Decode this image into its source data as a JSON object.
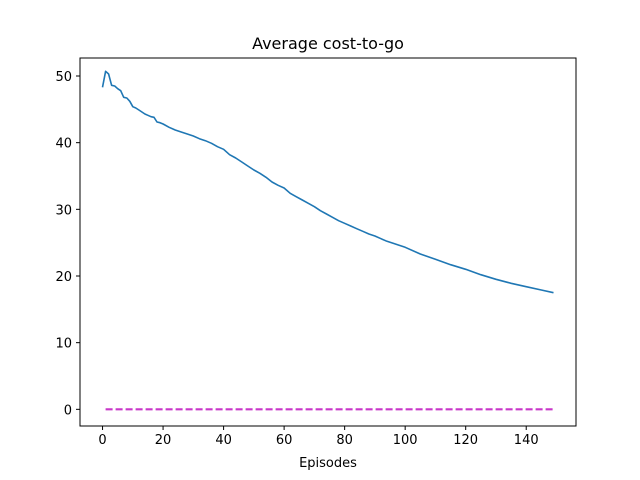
{
  "chart_data": {
    "type": "line",
    "title": "Average cost-to-go",
    "xlabel": "Episodes",
    "ylabel": "",
    "xlim": [
      -7.45,
      156.45
    ],
    "ylim": [
      -2.5,
      52.7
    ],
    "xticks": [
      0,
      20,
      40,
      60,
      80,
      100,
      120,
      140
    ],
    "yticks": [
      0,
      10,
      20,
      30,
      40,
      50
    ],
    "grid": false,
    "legend": "none",
    "series": [
      {
        "color": "#1f77b4",
        "style": "solid",
        "x": [
          0,
          1,
          2,
          3,
          4,
          5,
          6,
          7,
          8,
          9,
          10,
          11,
          12,
          13,
          14,
          15,
          16,
          17,
          18,
          19,
          20,
          22,
          24,
          26,
          28,
          30,
          32,
          34,
          36,
          38,
          40,
          42,
          44,
          46,
          48,
          50,
          52,
          54,
          56,
          58,
          60,
          62,
          64,
          66,
          68,
          70,
          72,
          74,
          76,
          78,
          80,
          82,
          84,
          86,
          88,
          90,
          92,
          94,
          96,
          98,
          100,
          105,
          110,
          115,
          120,
          125,
          130,
          135,
          140,
          145,
          149
        ],
        "values": [
          48.3,
          50.7,
          50.3,
          48.6,
          48.5,
          48.1,
          47.8,
          46.8,
          46.7,
          46.2,
          45.4,
          45.2,
          44.9,
          44.6,
          44.3,
          44.1,
          43.9,
          43.8,
          43.1,
          43.0,
          42.8,
          42.3,
          41.9,
          41.6,
          41.3,
          41.0,
          40.6,
          40.3,
          39.9,
          39.4,
          39.0,
          38.2,
          37.7,
          37.1,
          36.5,
          35.9,
          35.4,
          34.8,
          34.1,
          33.6,
          33.2,
          32.4,
          31.9,
          31.4,
          30.9,
          30.4,
          29.8,
          29.3,
          28.8,
          28.3,
          27.9,
          27.5,
          27.1,
          26.7,
          26.3,
          26.0,
          25.6,
          25.2,
          24.9,
          24.6,
          24.3,
          23.3,
          22.5,
          21.7,
          21.0,
          20.2,
          19.5,
          18.9,
          18.4,
          17.9,
          17.5
        ]
      },
      {
        "color": "#c837c8",
        "style": "dashed",
        "x": [
          1,
          149
        ],
        "values": [
          0,
          0
        ]
      }
    ]
  }
}
